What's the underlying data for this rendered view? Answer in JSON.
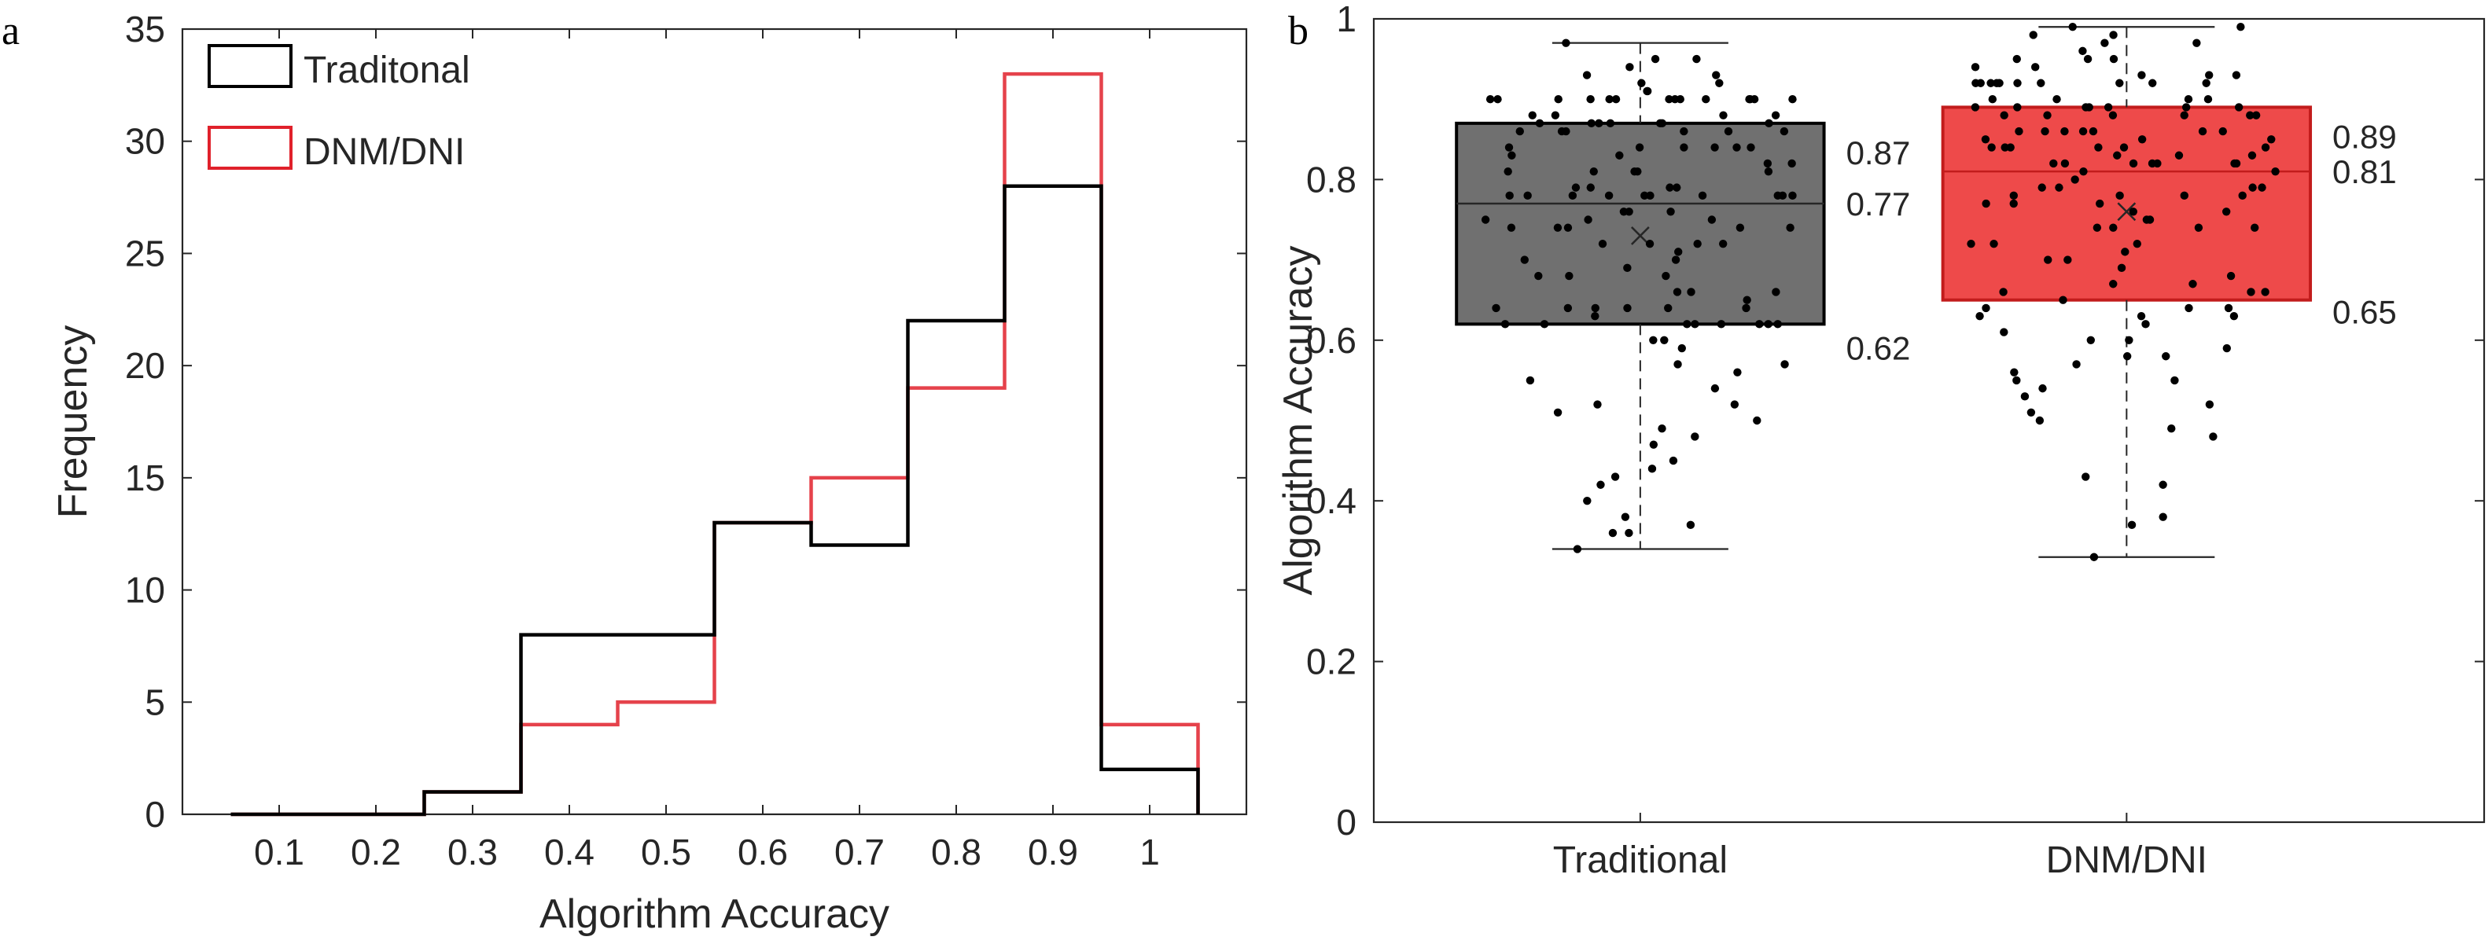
{
  "panels": [
    {
      "letter": "a"
    },
    {
      "letter": "b"
    }
  ],
  "chart_data": [
    {
      "type": "histogram",
      "xlabel": "Algorithm Accuracy",
      "ylabel": "Frequency",
      "xticks": [
        "0.1",
        "0.2",
        "0.3",
        "0.4",
        "0.5",
        "0.6",
        "0.7",
        "0.8",
        "0.9",
        "1"
      ],
      "yticks": [
        "0",
        "5",
        "10",
        "15",
        "20",
        "25",
        "30",
        "35"
      ],
      "xlim": [
        0,
        1.1
      ],
      "ylim": [
        0,
        35
      ],
      "grid": false,
      "legend_position": "top-left",
      "bin_edges": [
        0.05,
        0.15,
        0.25,
        0.35,
        0.45,
        0.55,
        0.65,
        0.75,
        0.85,
        0.95,
        1.05
      ],
      "series": [
        {
          "name": "Traditonal",
          "color": "#000000",
          "values": [
            0,
            0,
            1,
            8,
            8,
            13,
            12,
            22,
            28,
            2
          ]
        },
        {
          "name": "DNM/DNI",
          "color": "#e0212b",
          "values": [
            0,
            0,
            1,
            4,
            5,
            13,
            15,
            19,
            33,
            4
          ]
        }
      ]
    },
    {
      "type": "box",
      "ylabel": "Algorithm Accuracy",
      "categories": [
        "Traditional",
        "DNM/DNI"
      ],
      "yticks": [
        "0",
        "0.2",
        "0.4",
        "0.6",
        "0.8",
        "1"
      ],
      "ylim": [
        0,
        1
      ],
      "grid": false,
      "boxes": [
        {
          "category": "Traditional",
          "fill": "#707070",
          "edge": "#000000",
          "whisker_low": 0.34,
          "q1": 0.62,
          "median": 0.77,
          "q3": 0.87,
          "whisker_high": 0.97,
          "mean": 0.73,
          "labels": {
            "q3": "0.87",
            "median": "0.77",
            "q1": "0.62"
          },
          "points": [
            0.97,
            0.95,
            0.95,
            0.94,
            0.93,
            0.93,
            0.92,
            0.92,
            0.91,
            0.91,
            0.9,
            0.9,
            0.9,
            0.9,
            0.9,
            0.9,
            0.9,
            0.9,
            0.9,
            0.9,
            0.9,
            0.9,
            0.9,
            0.9,
            0.88,
            0.88,
            0.88,
            0.88,
            0.87,
            0.87,
            0.87,
            0.87,
            0.87,
            0.87,
            0.87,
            0.86,
            0.86,
            0.86,
            0.86,
            0.86,
            0.86,
            0.84,
            0.84,
            0.84,
            0.84,
            0.84,
            0.84,
            0.83,
            0.83,
            0.82,
            0.82,
            0.81,
            0.81,
            0.81,
            0.81,
            0.81,
            0.79,
            0.79,
            0.79,
            0.79,
            0.78,
            0.78,
            0.78,
            0.78,
            0.78,
            0.78,
            0.78,
            0.78,
            0.78,
            0.78,
            0.76,
            0.76,
            0.76,
            0.75,
            0.75,
            0.75,
            0.74,
            0.74,
            0.74,
            0.74,
            0.74,
            0.72,
            0.72,
            0.72,
            0.72,
            0.71,
            0.7,
            0.7,
            0.69,
            0.68,
            0.68,
            0.68,
            0.66,
            0.66,
            0.66,
            0.65,
            0.64,
            0.64,
            0.64,
            0.64,
            0.64,
            0.64,
            0.63,
            0.62,
            0.62,
            0.62,
            0.62,
            0.62,
            0.62,
            0.62,
            0.62,
            0.6,
            0.6,
            0.59,
            0.57,
            0.57,
            0.56,
            0.55,
            0.54,
            0.52,
            0.52,
            0.51,
            0.5,
            0.49,
            0.48,
            0.47,
            0.45,
            0.44,
            0.43,
            0.42,
            0.4,
            0.38,
            0.37,
            0.36,
            0.36,
            0.34
          ]
        },
        {
          "category": "DNM/DNI",
          "fill": "#ee4a4a",
          "edge": "#c21c1c",
          "whisker_low": 0.33,
          "q1": 0.65,
          "median": 0.81,
          "q3": 0.89,
          "whisker_high": 0.99,
          "mean": 0.76,
          "labels": {
            "q3": "0.89",
            "median": "0.81",
            "q1": "0.65"
          },
          "points": [
            0.99,
            0.99,
            0.98,
            0.98,
            0.97,
            0.97,
            0.96,
            0.95,
            0.95,
            0.95,
            0.94,
            0.94,
            0.93,
            0.93,
            0.93,
            0.92,
            0.92,
            0.92,
            0.92,
            0.92,
            0.92,
            0.92,
            0.92,
            0.92,
            0.92,
            0.9,
            0.9,
            0.9,
            0.9,
            0.89,
            0.89,
            0.89,
            0.89,
            0.89,
            0.89,
            0.89,
            0.88,
            0.88,
            0.88,
            0.88,
            0.88,
            0.88,
            0.86,
            0.86,
            0.86,
            0.86,
            0.86,
            0.86,
            0.86,
            0.85,
            0.85,
            0.85,
            0.84,
            0.84,
            0.84,
            0.84,
            0.84,
            0.84,
            0.83,
            0.83,
            0.83,
            0.82,
            0.82,
            0.82,
            0.82,
            0.82,
            0.82,
            0.82,
            0.81,
            0.81,
            0.8,
            0.79,
            0.79,
            0.79,
            0.79,
            0.78,
            0.78,
            0.78,
            0.78,
            0.77,
            0.77,
            0.77,
            0.76,
            0.76,
            0.75,
            0.75,
            0.74,
            0.74,
            0.74,
            0.74,
            0.72,
            0.72,
            0.72,
            0.71,
            0.7,
            0.7,
            0.69,
            0.68,
            0.67,
            0.67,
            0.66,
            0.66,
            0.66,
            0.65,
            0.64,
            0.64,
            0.64,
            0.63,
            0.63,
            0.63,
            0.62,
            0.61,
            0.6,
            0.6,
            0.59,
            0.58,
            0.58,
            0.57,
            0.56,
            0.55,
            0.55,
            0.54,
            0.53,
            0.52,
            0.51,
            0.5,
            0.49,
            0.48,
            0.43,
            0.42,
            0.38,
            0.37,
            0.33
          ]
        }
      ]
    }
  ]
}
